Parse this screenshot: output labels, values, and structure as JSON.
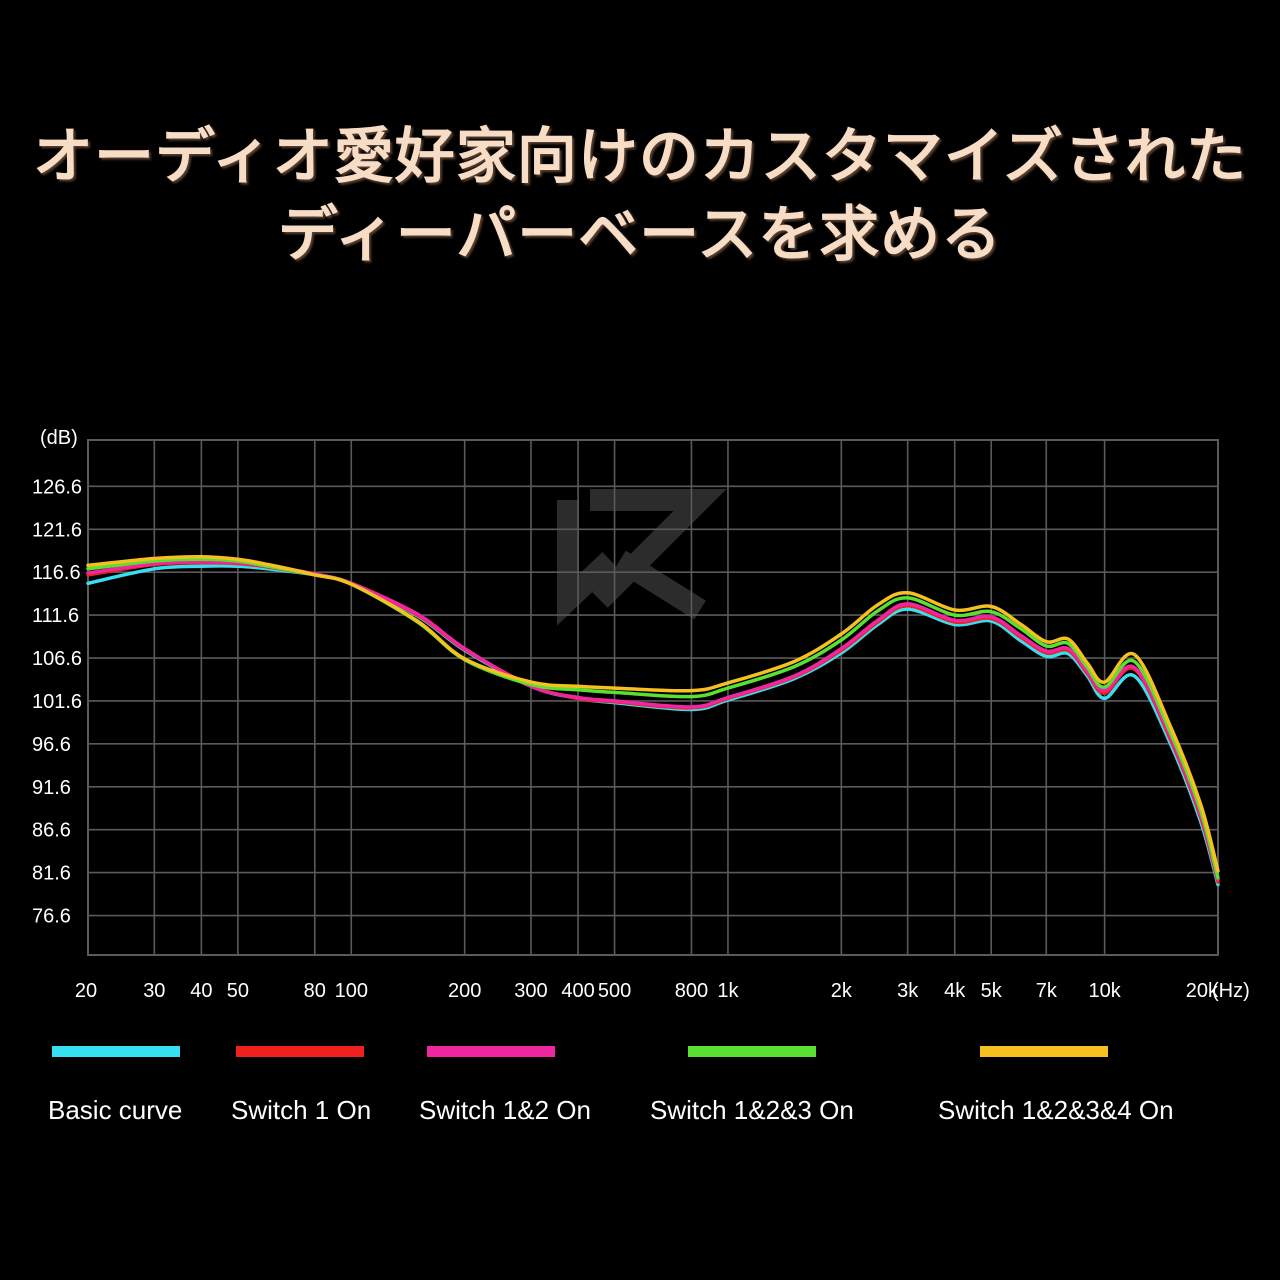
{
  "headline": {
    "line1": "オーディオ愛好家向けのカスタマイズされた",
    "line2": "ディーパーベースを求める"
  },
  "chart_data": {
    "type": "line",
    "title": "",
    "xlabel": "(Hz)",
    "ylabel": "(dB)",
    "x_scale": "log",
    "xlim": [
      20,
      20000
    ],
    "ylim": [
      72,
      132
    ],
    "grid": true,
    "legend_placement": "bottom",
    "y_ticks": [
      126.6,
      121.6,
      116.6,
      111.6,
      106.6,
      101.6,
      96.6,
      91.6,
      86.6,
      81.6,
      76.6
    ],
    "x_ticks": [
      {
        "value": 20,
        "label": "20"
      },
      {
        "value": 30,
        "label": "30"
      },
      {
        "value": 40,
        "label": "40"
      },
      {
        "value": 50,
        "label": "50"
      },
      {
        "value": 80,
        "label": "80"
      },
      {
        "value": 100,
        "label": "100"
      },
      {
        "value": 200,
        "label": "200"
      },
      {
        "value": 300,
        "label": "300"
      },
      {
        "value": 400,
        "label": "400"
      },
      {
        "value": 500,
        "label": "500"
      },
      {
        "value": 800,
        "label": "800"
      },
      {
        "value": 1000,
        "label": "1k"
      },
      {
        "value": 2000,
        "label": "2k"
      },
      {
        "value": 3000,
        "label": "3k"
      },
      {
        "value": 4000,
        "label": "4k"
      },
      {
        "value": 5000,
        "label": "5k"
      },
      {
        "value": 7000,
        "label": "7k"
      },
      {
        "value": 10000,
        "label": "10k"
      },
      {
        "value": 20000,
        "label": "20k"
      }
    ],
    "x": [
      20,
      30,
      40,
      50,
      60,
      80,
      100,
      150,
      200,
      300,
      400,
      500,
      800,
      1000,
      1500,
      2000,
      2500,
      3000,
      4000,
      5000,
      6000,
      7000,
      8000,
      9000,
      10000,
      12000,
      15000,
      18000,
      20000
    ],
    "series": [
      {
        "name": "Basic curve",
        "color": "#36e0f0",
        "values": [
          115.3,
          117.0,
          117.3,
          117.3,
          117.0,
          116.3,
          115.3,
          111.5,
          107.5,
          103.3,
          101.9,
          101.4,
          100.6,
          101.7,
          104.2,
          107.2,
          110.5,
          112.3,
          110.5,
          110.9,
          108.6,
          106.8,
          107.1,
          104.5,
          101.9,
          104.5,
          96.5,
          87.5,
          80.2
        ]
      },
      {
        "name": "Switch 1 On",
        "color": "#f02020",
        "values": [
          116.3,
          117.5,
          117.7,
          117.6,
          117.2,
          116.3,
          115.3,
          111.6,
          107.6,
          103.4,
          101.9,
          101.5,
          100.8,
          101.9,
          104.4,
          107.5,
          110.8,
          112.7,
          110.8,
          111.2,
          109.0,
          107.2,
          107.5,
          104.8,
          102.5,
          105.3,
          97.0,
          88.0,
          80.5
        ]
      },
      {
        "name": "Switch 1&2 On",
        "color": "#f025a0",
        "values": [
          116.5,
          117.6,
          117.8,
          117.7,
          117.3,
          116.4,
          115.3,
          111.7,
          107.7,
          103.3,
          102.0,
          101.6,
          100.9,
          102.0,
          104.5,
          107.7,
          111.0,
          112.9,
          111.0,
          111.4,
          109.2,
          107.4,
          107.7,
          105.0,
          102.8,
          105.5,
          97.3,
          88.3,
          80.8
        ]
      },
      {
        "name": "Switch 1&2&3 On",
        "color": "#5ae030",
        "values": [
          117.0,
          117.9,
          118.1,
          117.9,
          117.3,
          116.3,
          115.2,
          110.8,
          106.4,
          103.5,
          102.9,
          102.6,
          102.1,
          103.1,
          105.6,
          108.7,
          112.1,
          113.6,
          111.6,
          112.0,
          110.0,
          108.0,
          108.3,
          105.5,
          103.2,
          106.2,
          97.8,
          88.8,
          81.0
        ]
      },
      {
        "name": "Switch 1&2&3&4 On",
        "color": "#f5c020",
        "values": [
          117.4,
          118.2,
          118.4,
          118.1,
          117.5,
          116.3,
          115.2,
          110.9,
          106.5,
          103.8,
          103.3,
          103.1,
          102.8,
          103.7,
          106.2,
          109.4,
          112.8,
          114.2,
          112.2,
          112.6,
          110.5,
          108.5,
          108.8,
          106.0,
          103.8,
          107.0,
          98.5,
          89.5,
          81.8
        ]
      }
    ]
  }
}
